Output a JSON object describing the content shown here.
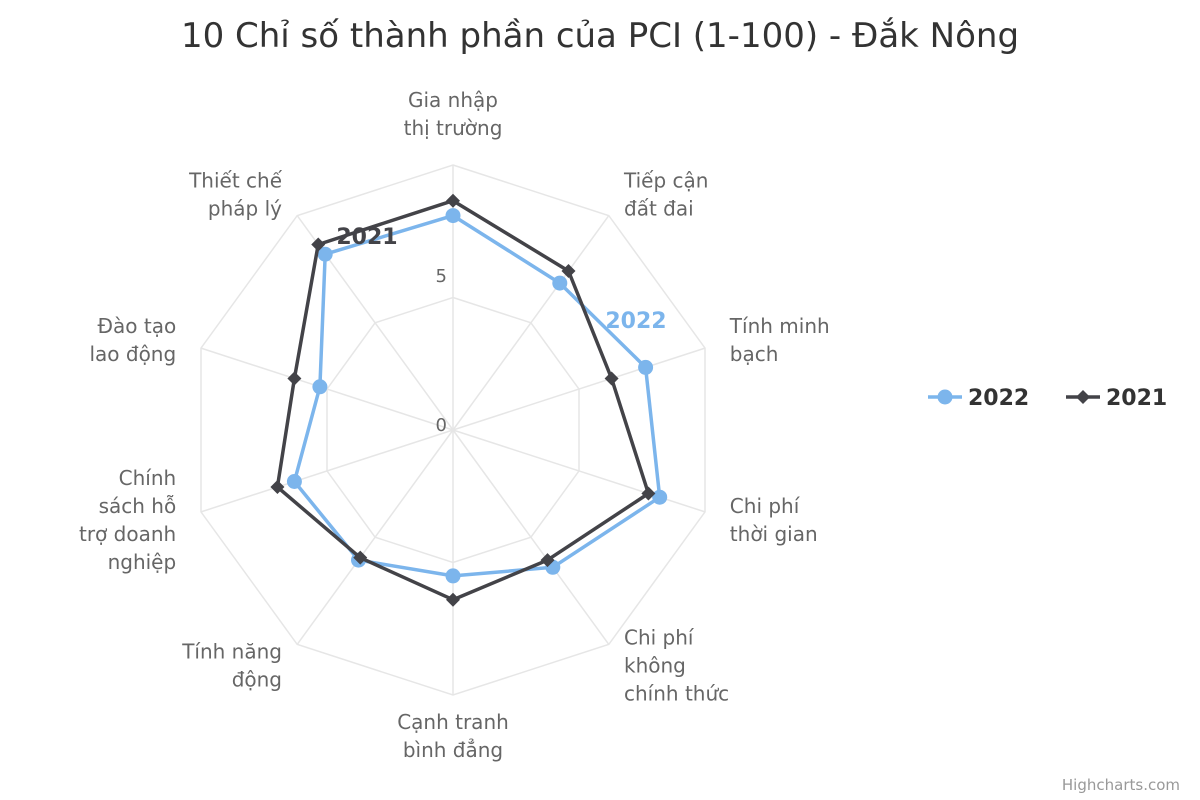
{
  "chart_data": {
    "type": "radar",
    "title": "10 Chỉ số thành phần của PCI (1-100) - Đắk Nông",
    "categories": [
      [
        "Gia nhập",
        "thị trường"
      ],
      [
        "Tiếp cận",
        "đất đai"
      ],
      [
        "Tính minh",
        "bạch"
      ],
      [
        "Chi phí",
        "thời gian"
      ],
      [
        "Chi phí",
        "không",
        "chính thức"
      ],
      [
        "Cạnh tranh",
        "bình đẳng"
      ],
      [
        "Tính năng",
        "động"
      ],
      [
        "Chính",
        "sách hỗ",
        "trợ doanh",
        "nghiệp"
      ],
      [
        "Đào tạo",
        "lao động"
      ],
      [
        "Thiết chế",
        "pháp lý"
      ]
    ],
    "y_ticks": [
      "0",
      "5"
    ],
    "ylim": [
      0,
      8.9
    ],
    "grid": true,
    "legend_position": "right",
    "series": [
      {
        "name": "2022",
        "color": "#7cb5ec",
        "marker": "circle",
        "values": [
          7.2,
          6.1,
          6.8,
          7.3,
          5.7,
          4.9,
          5.4,
          5.6,
          4.7,
          7.3
        ]
      },
      {
        "name": "2021",
        "color": "#434348",
        "marker": "diamond",
        "values": [
          7.7,
          6.6,
          5.6,
          6.9,
          5.4,
          5.7,
          5.3,
          6.2,
          5.6,
          7.7
        ]
      }
    ],
    "credits": "Highcharts.com"
  }
}
